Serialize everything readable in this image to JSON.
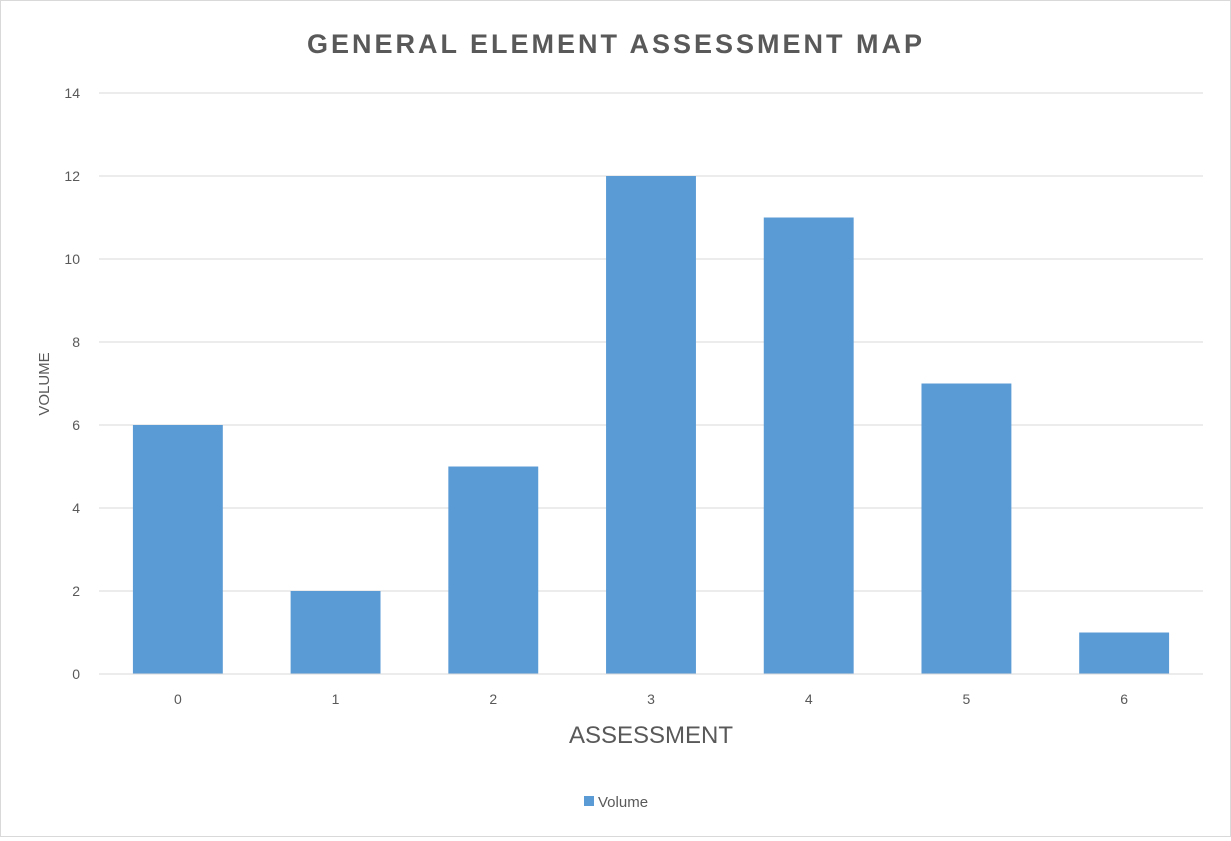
{
  "chart_data": {
    "type": "bar",
    "title": "GENERAL ELEMENT ASSESSMENT MAP",
    "xlabel": "ASSESSMENT",
    "ylabel": "VOLUME",
    "categories": [
      "0",
      "1",
      "2",
      "3",
      "4",
      "5",
      "6"
    ],
    "series": [
      {
        "name": "Volume",
        "values": [
          6,
          2,
          5,
          12,
          11,
          7,
          1
        ]
      }
    ],
    "ylim": [
      0,
      14
    ],
    "yticks": [
      "0",
      "2",
      "4",
      "6",
      "8",
      "10",
      "12",
      "14"
    ],
    "grid": true,
    "legend_position": "bottom"
  },
  "colors": {
    "bar": "#5b9bd5",
    "gridline": "#d9d9d9",
    "title": "#595959",
    "axis_text": "#595959"
  }
}
